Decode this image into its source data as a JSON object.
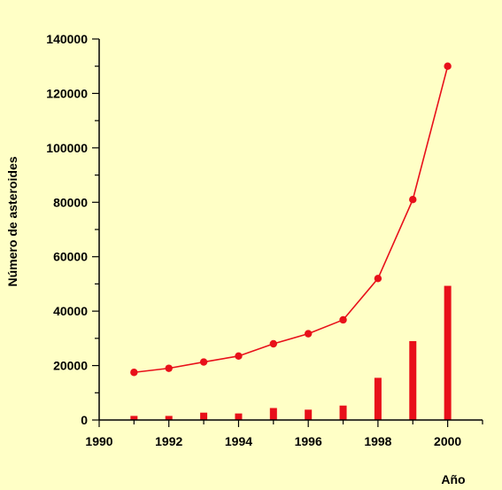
{
  "chart_data": {
    "type": "line",
    "title": "",
    "xlabel": "Año",
    "ylabel": "Número de asteroides",
    "xlim": [
      1990,
      2001
    ],
    "ylim": [
      0,
      140000
    ],
    "x_ticks": [
      1990,
      1992,
      1994,
      1996,
      1998,
      2000
    ],
    "y_ticks": [
      0,
      20000,
      40000,
      60000,
      80000,
      100000,
      120000,
      140000
    ],
    "x_tick_labels": [
      "1990",
      "1992",
      "1994",
      "1996",
      "1998",
      "2000"
    ],
    "y_tick_labels": [
      "0",
      "20000",
      "40000",
      "60000",
      "80000",
      "100000",
      "120000",
      "140000"
    ],
    "grid": false,
    "legend": "none",
    "x": [
      1991,
      1992,
      1993,
      1994,
      1995,
      1996,
      1997,
      1998,
      1999,
      2000
    ],
    "series": [
      {
        "type": "line",
        "values": [
          17500,
          19000,
          21300,
          23500,
          28000,
          31700,
          36800,
          52000,
          81000,
          130000
        ],
        "color": "#E8101A"
      },
      {
        "type": "bar",
        "values": [
          1500,
          1500,
          2700,
          2400,
          4400,
          3800,
          5300,
          15500,
          29000,
          49300
        ],
        "color": "#E8101A"
      }
    ]
  }
}
